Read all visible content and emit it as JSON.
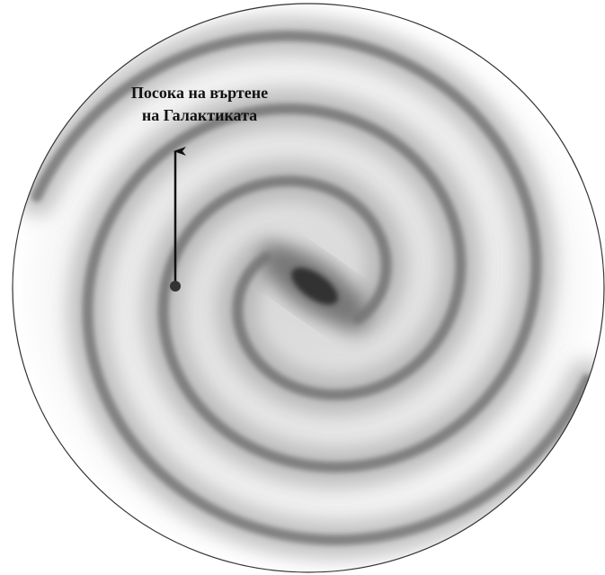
{
  "annotation": {
    "lines": [
      "Посока на въртене",
      "на Галактиката"
    ]
  }
}
